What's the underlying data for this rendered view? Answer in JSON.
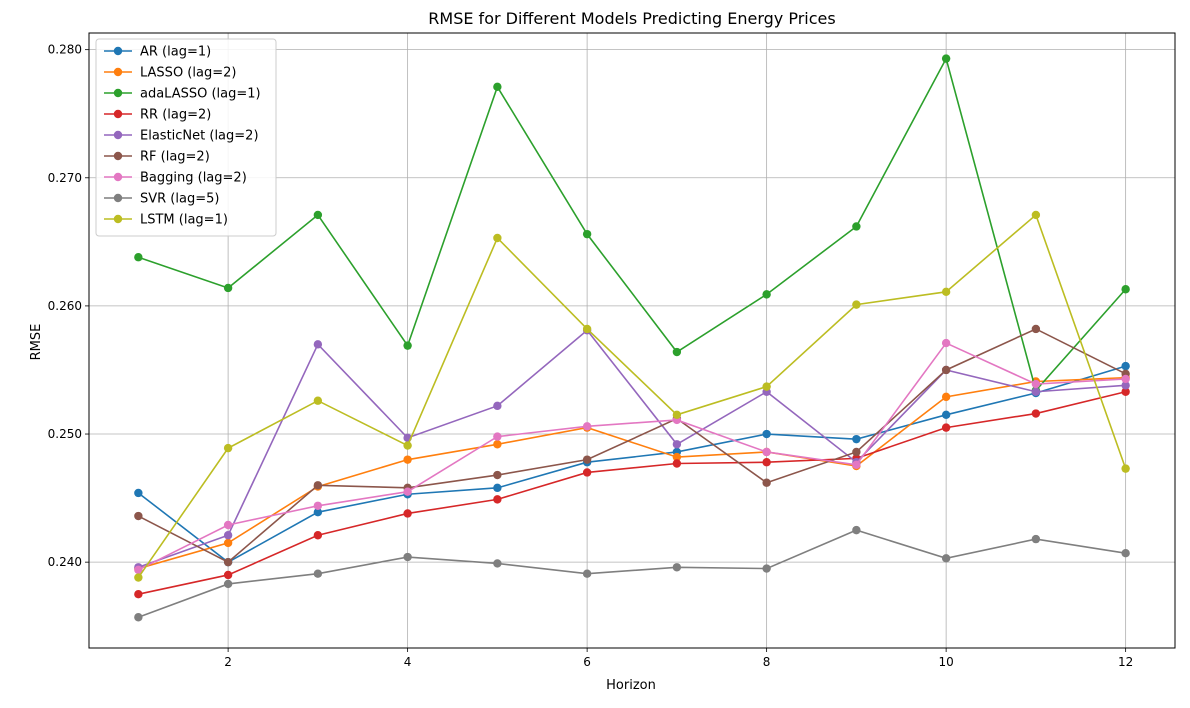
{
  "chart_data": {
    "type": "line",
    "title": "RMSE for Different Models Predicting Energy Prices",
    "xlabel": "Horizon",
    "ylabel": "RMSE",
    "x": [
      1,
      2,
      3,
      4,
      5,
      6,
      7,
      8,
      9,
      10,
      11,
      12
    ],
    "xticks": [
      2,
      4,
      6,
      8,
      10,
      12
    ],
    "yticks": [
      0.24,
      0.25,
      0.26,
      0.27,
      0.28
    ],
    "ytick_labels": [
      "0.240",
      "0.250",
      "0.260",
      "0.270",
      "0.280"
    ],
    "xlim": [
      0.45,
      12.55
    ],
    "ylim": [
      0.2333,
      0.2813
    ],
    "grid": true,
    "legend_position": "upper-left",
    "series": [
      {
        "name": "AR (lag=1)",
        "color": "#1f77b4",
        "values": [
          0.2454,
          0.24,
          0.2439,
          0.2453,
          0.2458,
          0.2478,
          0.2486,
          0.25,
          0.2496,
          0.2515,
          0.2532,
          0.2553
        ]
      },
      {
        "name": "LASSO (lag=2)",
        "color": "#ff7f0e",
        "values": [
          0.2395,
          0.2415,
          0.2459,
          0.248,
          0.2492,
          0.2505,
          0.2482,
          0.2486,
          0.2475,
          0.2529,
          0.2541,
          0.2544
        ]
      },
      {
        "name": "adaLASSO (lag=1)",
        "color": "#2ca02c",
        "values": [
          0.2638,
          0.2614,
          0.2671,
          0.2569,
          0.2771,
          0.2656,
          0.2564,
          0.2609,
          0.2662,
          0.2793,
          0.2534,
          0.2613
        ]
      },
      {
        "name": "RR (lag=2)",
        "color": "#d62728",
        "values": [
          0.2375,
          0.239,
          0.2421,
          0.2438,
          0.2449,
          0.247,
          0.2477,
          0.2478,
          0.2481,
          0.2505,
          0.2516,
          0.2533
        ]
      },
      {
        "name": "ElasticNet (lag=2)",
        "color": "#9467bd",
        "values": [
          0.2396,
          0.2421,
          0.257,
          0.2497,
          0.2522,
          0.2581,
          0.2492,
          0.2533,
          0.2478,
          0.255,
          0.2533,
          0.2538
        ]
      },
      {
        "name": "RF (lag=2)",
        "color": "#8c564b",
        "values": [
          0.2436,
          0.24,
          0.246,
          0.2458,
          0.2468,
          0.248,
          0.2512,
          0.2462,
          0.2486,
          0.255,
          0.2582,
          0.2547
        ]
      },
      {
        "name": "Bagging (lag=2)",
        "color": "#e377c2",
        "values": [
          0.2394,
          0.2429,
          0.2444,
          0.2455,
          0.2498,
          0.2506,
          0.2511,
          0.2486,
          0.2476,
          0.2571,
          0.2539,
          0.2543
        ]
      },
      {
        "name": "SVR (lag=5)",
        "color": "#7f7f7f",
        "values": [
          0.2357,
          0.2383,
          0.2391,
          0.2404,
          0.2399,
          0.2391,
          0.2396,
          0.2395,
          0.2425,
          0.2403,
          0.2418,
          0.2407
        ]
      },
      {
        "name": "LSTM (lag=1)",
        "color": "#bcbd22",
        "values": [
          0.2388,
          0.2489,
          0.2526,
          0.2491,
          0.2653,
          0.2582,
          0.2515,
          0.2537,
          0.2601,
          0.2611,
          0.2671,
          0.2473
        ]
      }
    ]
  }
}
